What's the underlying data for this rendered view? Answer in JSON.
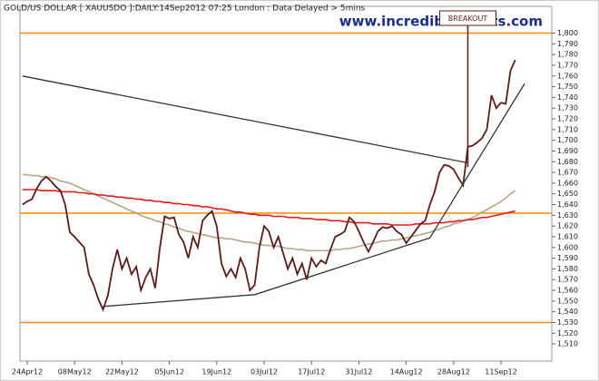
{
  "chart_data": {
    "type": "line",
    "title": "GOLD/US DOLLAR [ XAUUSDO ]:DAILY:14Sep2012 07:25 London : Data Delayed > 5mins",
    "watermark": "www.incrediblecharts.com",
    "categories": [
      null,
      "24Apr12",
      null,
      null,
      null,
      null,
      null,
      null,
      null,
      null,
      null,
      "08May12",
      null,
      null,
      null,
      null,
      null,
      null,
      null,
      null,
      null,
      "22May12",
      null,
      null,
      null,
      null,
      null,
      null,
      null,
      null,
      null,
      "05Jun12",
      null,
      null,
      null,
      null,
      null,
      null,
      null,
      null,
      null,
      "19Jun12",
      null,
      null,
      null,
      null,
      null,
      null,
      null,
      null,
      null,
      "03Jul12",
      null,
      null,
      null,
      null,
      null,
      null,
      null,
      null,
      null,
      "17Jul12",
      null,
      null,
      null,
      null,
      null,
      null,
      null,
      null,
      null,
      "31Jul12",
      null,
      null,
      null,
      null,
      null,
      null,
      null,
      null,
      null,
      "14Aug12",
      null,
      null,
      null,
      null,
      null,
      null,
      null,
      null,
      null,
      "28Aug12",
      null,
      null,
      null,
      null,
      null,
      null,
      null,
      null,
      null,
      "11Sep12",
      null,
      null,
      null
    ],
    "series": [
      {
        "color": "#b5a588",
        "values": [
          1668,
          1668,
          1667,
          1667,
          1666,
          1666,
          1665,
          1664,
          1662,
          1661,
          1660,
          1658,
          1656,
          1654,
          1652,
          1650,
          1648,
          1646,
          1644,
          1642,
          1640,
          1638,
          1636,
          1634,
          1632,
          1630,
          1628,
          1627,
          1625,
          1624,
          1622,
          1621,
          1619,
          1618,
          1616,
          1615,
          1614,
          1613,
          1612,
          1611,
          1610,
          1609,
          1609,
          1608,
          1608,
          1607,
          1606,
          1605,
          1605,
          1604,
          1603,
          1602,
          1602,
          1601,
          1601,
          1600,
          1599,
          1599,
          1598,
          1598,
          1597,
          1597,
          1597,
          1597,
          1597,
          1597,
          1598,
          1598,
          1599,
          1599,
          1600,
          1601,
          1602,
          1603,
          1604,
          1605,
          1606,
          1606,
          1607,
          1607,
          1608,
          1609,
          1610,
          1611,
          1612,
          1613,
          1614,
          1616,
          1617,
          1619,
          1620,
          1622,
          1623,
          1625,
          1626,
          1628,
          1630,
          1633,
          1635,
          1638,
          1640,
          1643,
          1646,
          1650,
          1653
        ]
      },
      {
        "color": "#e31a1a",
        "values": [
          1654,
          1654,
          1654,
          1654,
          1653,
          1653,
          1653,
          1653,
          1652,
          1652,
          1652,
          1652,
          1651,
          1651,
          1650,
          1650,
          1649,
          1649,
          1648,
          1648,
          1647,
          1647,
          1646,
          1646,
          1645,
          1645,
          1644,
          1644,
          1643,
          1643,
          1642,
          1642,
          1641,
          1641,
          1640,
          1640,
          1639,
          1639,
          1638,
          1638,
          1637,
          1636,
          1636,
          1635,
          1634,
          1633,
          1633,
          1632,
          1631,
          1631,
          1630,
          1630,
          1630,
          1629,
          1629,
          1629,
          1628,
          1628,
          1628,
          1627,
          1627,
          1627,
          1626,
          1626,
          1626,
          1625,
          1625,
          1625,
          1624,
          1624,
          1623,
          1623,
          1623,
          1623,
          1622,
          1622,
          1622,
          1622,
          1621,
          1621,
          1621,
          1621,
          1621,
          1622,
          1622,
          1622,
          1622,
          1623,
          1623,
          1623,
          1624,
          1624,
          1625,
          1625,
          1626,
          1626,
          1627,
          1628,
          1628,
          1629,
          1630,
          1631,
          1632,
          1633,
          1634
        ]
      },
      {
        "color": "#5c1c1c",
        "values": [
          1640,
          1643,
          1645,
          1655,
          1662,
          1666,
          1662,
          1657,
          1653,
          1640,
          1614,
          1610,
          1605,
          1600,
          1575,
          1565,
          1552,
          1542,
          1555,
          1580,
          1598,
          1580,
          1590,
          1575,
          1582,
          1560,
          1572,
          1580,
          1562,
          1600,
          1629,
          1627,
          1628,
          1612,
          1605,
          1590,
          1610,
          1600,
          1625,
          1630,
          1634,
          1620,
          1585,
          1573,
          1580,
          1572,
          1590,
          1580,
          1560,
          1565,
          1600,
          1620,
          1615,
          1600,
          1610,
          1595,
          1580,
          1590,
          1575,
          1585,
          1570,
          1590,
          1582,
          1588,
          1585,
          1598,
          1610,
          1612,
          1615,
          1628,
          1624,
          1615,
          1605,
          1596,
          1605,
          1615,
          1619,
          1618,
          1620,
          1615,
          1612,
          1604,
          1610,
          1616,
          1622,
          1625,
          1640,
          1652,
          1670,
          1677,
          1676,
          1673,
          1665,
          1658,
          1694,
          1695,
          1698,
          1702,
          1710,
          1742,
          1730,
          1735,
          1734,
          1765,
          1775
        ]
      }
    ],
    "levels": [
      1800,
      1632,
      1530
    ],
    "level_color": "#ff8c00",
    "trendline_color": "#333333",
    "trendlines": [
      {
        "x": [
          0,
          94
        ],
        "values": [
          1760,
          1679
        ]
      },
      {
        "x": [
          17,
          49,
          86
        ],
        "values": [
          1545,
          1556,
          1609
        ]
      },
      {
        "x": [
          86,
          106
        ],
        "values": [
          1609,
          1753
        ]
      }
    ],
    "annotation": {
      "text": "BREAKOUT",
      "x": 94,
      "value": 1675
    },
    "ylim": [
      1494,
      1825
    ],
    "yticks": [
      {
        "value": 1510,
        "label": "1,510"
      },
      {
        "value": 1520,
        "label": "1,520"
      },
      {
        "value": 1530,
        "label": "1,530"
      },
      {
        "value": 1540,
        "label": "1,540"
      },
      {
        "value": 1550,
        "label": "1,550"
      },
      {
        "value": 1560,
        "label": "1,560"
      },
      {
        "value": 1570,
        "label": "1,570"
      },
      {
        "value": 1580,
        "label": "1,580"
      },
      {
        "value": 1590,
        "label": "1,590"
      },
      {
        "value": 1600,
        "label": "1,600"
      },
      {
        "value": 1610,
        "label": "1,610"
      },
      {
        "value": 1620,
        "label": "1,620"
      },
      {
        "value": 1630,
        "label": "1,630"
      },
      {
        "value": 1640,
        "label": "1,640"
      },
      {
        "value": 1650,
        "label": "1,650"
      },
      {
        "value": 1660,
        "label": "1,660"
      },
      {
        "value": 1670,
        "label": "1,670"
      },
      {
        "value": 1680,
        "label": "1,680"
      },
      {
        "value": 1690,
        "label": "1,690"
      },
      {
        "value": 1700,
        "label": "1,700"
      },
      {
        "value": 1710,
        "label": "1,710"
      },
      {
        "value": 1720,
        "label": "1,720"
      },
      {
        "value": 1730,
        "label": "1,730"
      },
      {
        "value": 1740,
        "label": "1,740"
      },
      {
        "value": 1750,
        "label": "1,750"
      },
      {
        "value": 1760,
        "label": "1,760"
      },
      {
        "value": 1770,
        "label": "1,770"
      },
      {
        "value": 1780,
        "label": "1,780"
      },
      {
        "value": 1790,
        "label": "1,790"
      },
      {
        "value": 1800,
        "label": "1,800"
      }
    ],
    "grid": false
  }
}
